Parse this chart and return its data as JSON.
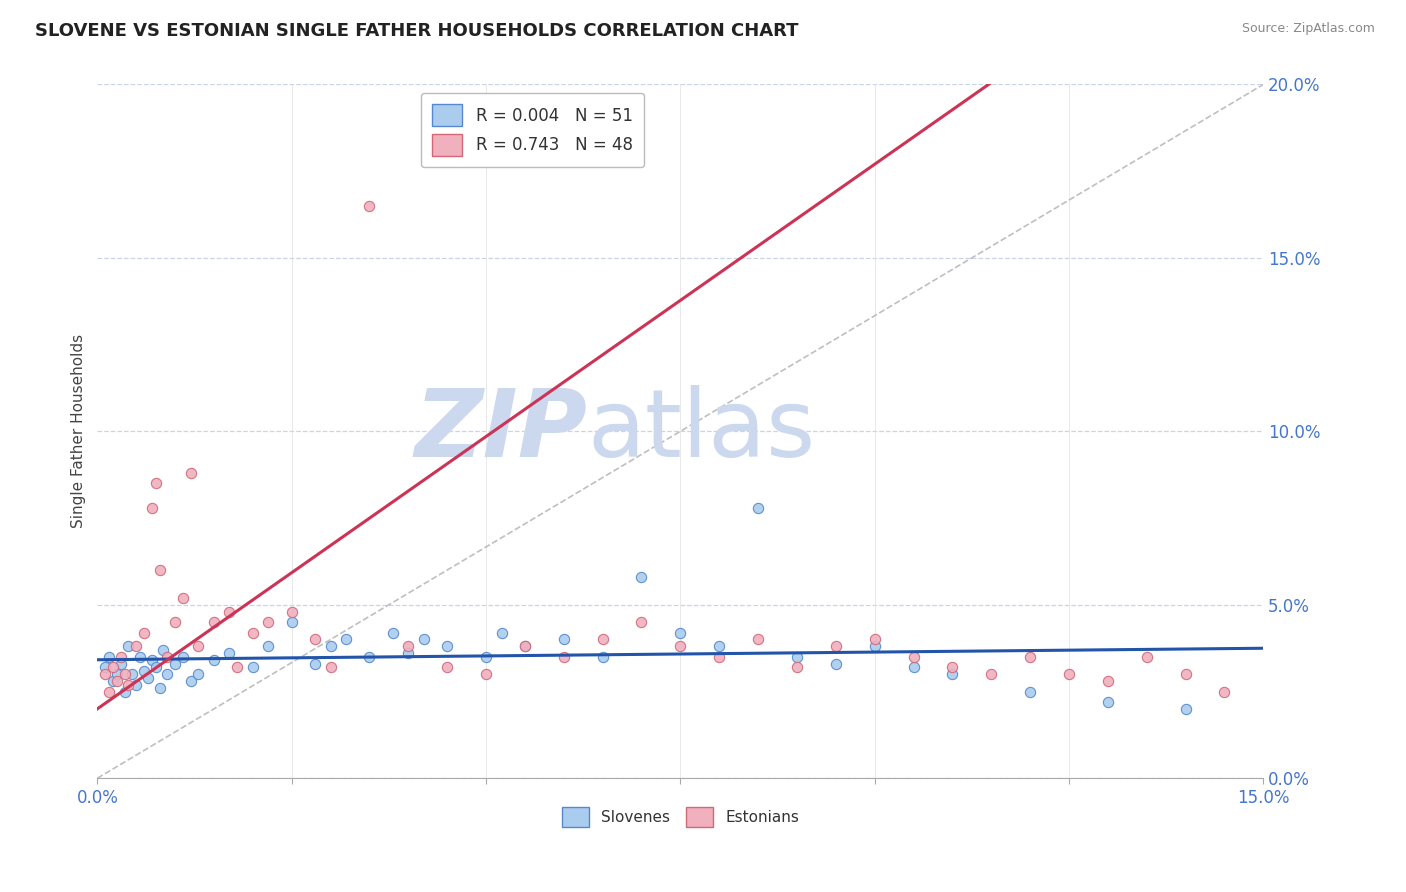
{
  "title": "SLOVENE VS ESTONIAN SINGLE FATHER HOUSEHOLDS CORRELATION CHART",
  "source": "Source: ZipAtlas.com",
  "ylabel": "Single Father Households",
  "xlim": [
    0.0,
    15.0
  ],
  "ylim": [
    0.0,
    20.0
  ],
  "y_ticks": [
    0.0,
    5.0,
    10.0,
    15.0,
    20.0
  ],
  "bottom_legend": [
    "Slovenes",
    "Estonians"
  ],
  "slovene_color": "#aaccee",
  "slovene_edge": "#5588cc",
  "estonian_color": "#f0b0be",
  "estonian_edge": "#d06878",
  "regression_slovene_color": "#2255aa",
  "regression_estonian_color": "#cc3355",
  "diag_color": "#b8b8b8",
  "watermark_zip": "ZIP",
  "watermark_atlas": "atlas",
  "watermark_color": "#ccd8ee",
  "legend_label_1": "R = 0.004   N = 51",
  "legend_label_2": "R = 0.743   N = 48",
  "slovene_x": [
    0.1,
    0.15,
    0.2,
    0.25,
    0.3,
    0.35,
    0.4,
    0.45,
    0.5,
    0.55,
    0.6,
    0.65,
    0.7,
    0.75,
    0.8,
    0.85,
    0.9,
    1.0,
    1.1,
    1.2,
    1.3,
    1.5,
    1.7,
    2.0,
    2.2,
    2.5,
    2.8,
    3.0,
    3.2,
    3.5,
    3.8,
    4.0,
    4.2,
    4.5,
    5.0,
    5.2,
    5.5,
    6.0,
    6.5,
    7.0,
    7.5,
    8.0,
    8.5,
    9.0,
    9.5,
    10.0,
    10.5,
    11.0,
    12.0,
    13.0,
    14.0
  ],
  "slovene_y": [
    3.2,
    3.5,
    2.8,
    3.0,
    3.3,
    2.5,
    3.8,
    3.0,
    2.7,
    3.5,
    3.1,
    2.9,
    3.4,
    3.2,
    2.6,
    3.7,
    3.0,
    3.3,
    3.5,
    2.8,
    3.0,
    3.4,
    3.6,
    3.2,
    3.8,
    4.5,
    3.3,
    3.8,
    4.0,
    3.5,
    4.2,
    3.6,
    4.0,
    3.8,
    3.5,
    4.2,
    3.8,
    4.0,
    3.5,
    5.8,
    4.2,
    3.8,
    7.8,
    3.5,
    3.3,
    3.8,
    3.2,
    3.0,
    2.5,
    2.2,
    2.0
  ],
  "estonian_x": [
    0.1,
    0.15,
    0.2,
    0.25,
    0.3,
    0.35,
    0.4,
    0.5,
    0.6,
    0.7,
    0.75,
    0.8,
    0.9,
    1.0,
    1.1,
    1.2,
    1.3,
    1.5,
    1.7,
    1.8,
    2.0,
    2.2,
    2.5,
    2.8,
    3.0,
    3.5,
    4.0,
    4.5,
    5.0,
    5.5,
    6.0,
    6.5,
    7.0,
    7.5,
    8.0,
    8.5,
    9.0,
    9.5,
    10.0,
    10.5,
    11.0,
    11.5,
    12.0,
    12.5,
    13.0,
    13.5,
    14.0,
    14.5
  ],
  "estonian_y": [
    3.0,
    2.5,
    3.2,
    2.8,
    3.5,
    3.0,
    2.7,
    3.8,
    4.2,
    7.8,
    8.5,
    6.0,
    3.5,
    4.5,
    5.2,
    8.8,
    3.8,
    4.5,
    4.8,
    3.2,
    4.2,
    4.5,
    4.8,
    4.0,
    3.2,
    16.5,
    3.8,
    3.2,
    3.0,
    3.8,
    3.5,
    4.0,
    4.5,
    3.8,
    3.5,
    4.0,
    3.2,
    3.8,
    4.0,
    3.5,
    3.2,
    3.0,
    3.5,
    3.0,
    2.8,
    3.5,
    3.0,
    2.5
  ]
}
